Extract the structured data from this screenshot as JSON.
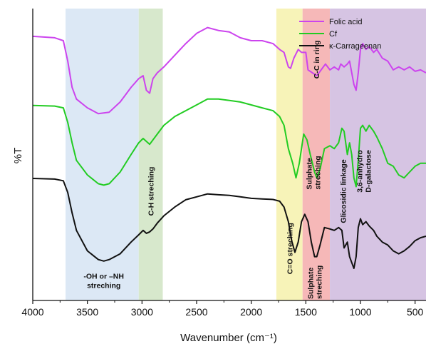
{
  "chart_data": {
    "type": "line",
    "xlabel": "Wavenumber (cm⁻¹)",
    "ylabel": "%T",
    "xlim": [
      4000,
      400
    ],
    "x_reversed": true,
    "x_ticks": [
      "4000",
      "3500",
      "3000",
      "2500",
      "2000",
      "1500",
      "1000",
      "500"
    ],
    "y_ticks_shown": false,
    "series": [
      {
        "name": "Folic acid",
        "color": "#cc44ee",
        "x": [
          4000,
          3800,
          3720,
          3680,
          3640,
          3600,
          3500,
          3400,
          3300,
          3200,
          3100,
          3030,
          2990,
          2960,
          2930,
          2900,
          2860,
          2800,
          2700,
          2600,
          2500,
          2400,
          2300,
          2200,
          2100,
          2000,
          1900,
          1800,
          1740,
          1700,
          1660,
          1640,
          1610,
          1570,
          1540,
          1500,
          1480,
          1440,
          1400,
          1360,
          1320,
          1280,
          1240,
          1200,
          1180,
          1150,
          1120,
          1100,
          1060,
          1040,
          1020,
          1000,
          980,
          950,
          920,
          880,
          850,
          800,
          750,
          700,
          650,
          600,
          550,
          500,
          450,
          400
        ],
        "y": [
          0.905,
          0.9,
          0.89,
          0.82,
          0.73,
          0.69,
          0.66,
          0.64,
          0.645,
          0.68,
          0.73,
          0.76,
          0.77,
          0.72,
          0.71,
          0.76,
          0.78,
          0.8,
          0.84,
          0.88,
          0.915,
          0.935,
          0.925,
          0.92,
          0.9,
          0.89,
          0.89,
          0.88,
          0.86,
          0.85,
          0.8,
          0.795,
          0.83,
          0.86,
          0.85,
          0.85,
          0.79,
          0.78,
          0.77,
          0.79,
          0.81,
          0.79,
          0.8,
          0.79,
          0.81,
          0.8,
          0.81,
          0.82,
          0.74,
          0.72,
          0.78,
          0.86,
          0.88,
          0.86,
          0.87,
          0.85,
          0.86,
          0.83,
          0.82,
          0.79,
          0.8,
          0.79,
          0.8,
          0.785,
          0.79,
          0.78
        ]
      },
      {
        "name": "Cf",
        "color": "#22cc22",
        "x": [
          4000,
          3800,
          3720,
          3680,
          3640,
          3600,
          3500,
          3400,
          3350,
          3300,
          3200,
          3100,
          3030,
          2990,
          2960,
          2930,
          2900,
          2860,
          2800,
          2700,
          2600,
          2500,
          2400,
          2300,
          2200,
          2100,
          2000,
          1900,
          1800,
          1740,
          1700,
          1660,
          1620,
          1590,
          1560,
          1520,
          1490,
          1460,
          1420,
          1400,
          1370,
          1330,
          1280,
          1240,
          1200,
          1170,
          1150,
          1120,
          1100,
          1080,
          1060,
          1040,
          1020,
          1000,
          980,
          950,
          920,
          880,
          850,
          800,
          750,
          700,
          650,
          600,
          550,
          500,
          450,
          400
        ],
        "y": [
          0.668,
          0.666,
          0.66,
          0.61,
          0.54,
          0.48,
          0.43,
          0.4,
          0.395,
          0.4,
          0.44,
          0.5,
          0.54,
          0.555,
          0.545,
          0.535,
          0.55,
          0.57,
          0.6,
          0.63,
          0.65,
          0.67,
          0.69,
          0.69,
          0.685,
          0.68,
          0.67,
          0.66,
          0.65,
          0.63,
          0.6,
          0.52,
          0.47,
          0.42,
          0.47,
          0.57,
          0.55,
          0.5,
          0.44,
          0.42,
          0.45,
          0.52,
          0.53,
          0.52,
          0.54,
          0.59,
          0.58,
          0.5,
          0.54,
          0.5,
          0.42,
          0.39,
          0.48,
          0.59,
          0.6,
          0.58,
          0.6,
          0.58,
          0.56,
          0.52,
          0.47,
          0.46,
          0.43,
          0.42,
          0.44,
          0.46,
          0.47,
          0.47
        ]
      },
      {
        "name": "κ-Carrageenan",
        "color": "#111111",
        "x": [
          4000,
          3800,
          3720,
          3680,
          3640,
          3600,
          3500,
          3400,
          3350,
          3300,
          3200,
          3100,
          3030,
          2990,
          2960,
          2930,
          2900,
          2860,
          2800,
          2700,
          2600,
          2500,
          2400,
          2300,
          2200,
          2100,
          2000,
          1900,
          1800,
          1740,
          1700,
          1660,
          1630,
          1600,
          1570,
          1540,
          1510,
          1480,
          1450,
          1420,
          1400,
          1370,
          1330,
          1280,
          1240,
          1200,
          1170,
          1150,
          1120,
          1100,
          1080,
          1060,
          1040,
          1020,
          1000,
          980,
          950,
          920,
          880,
          850,
          800,
          750,
          700,
          650,
          600,
          550,
          500,
          450,
          400
        ],
        "y": [
          0.418,
          0.416,
          0.41,
          0.37,
          0.3,
          0.24,
          0.17,
          0.14,
          0.135,
          0.14,
          0.16,
          0.2,
          0.225,
          0.24,
          0.23,
          0.235,
          0.245,
          0.265,
          0.29,
          0.32,
          0.345,
          0.355,
          0.365,
          0.362,
          0.36,
          0.355,
          0.35,
          0.348,
          0.346,
          0.34,
          0.32,
          0.27,
          0.205,
          0.165,
          0.2,
          0.27,
          0.295,
          0.27,
          0.2,
          0.15,
          0.15,
          0.19,
          0.25,
          0.245,
          0.24,
          0.25,
          0.24,
          0.18,
          0.2,
          0.15,
          0.13,
          0.11,
          0.15,
          0.25,
          0.28,
          0.26,
          0.27,
          0.255,
          0.24,
          0.22,
          0.2,
          0.19,
          0.17,
          0.16,
          0.17,
          0.185,
          0.205,
          0.215,
          0.22
        ]
      }
    ],
    "bands": [
      {
        "from": 3700,
        "to": 3030,
        "color": "#dce8f5",
        "label_lines": [
          "-OH or –NH",
          "streching"
        ],
        "label_at": 3350,
        "label_y": 0.075,
        "vertical": false
      },
      {
        "from": 3030,
        "to": 2810,
        "color": "#d7e8cc",
        "label_lines": [
          "C-H streching"
        ],
        "label_at": 2920,
        "label_y": 0.29,
        "vertical": true
      },
      {
        "from": 1770,
        "to": 1530,
        "color": "#f7f3b8",
        "label_lines": [
          "C=O streching"
        ],
        "label_at": 1650,
        "label_y": 0.09,
        "vertical": true
      },
      {
        "from": 1530,
        "to": 1280,
        "color": "#f6b8b8",
        "label_lines": [
          "C-C in ring"
        ],
        "label_at": 1405,
        "label_y": 0.76,
        "vertical": true
      },
      {
        "from": 1280,
        "to": 400,
        "color": "#d6c4e3",
        "label_lines": [],
        "vertical": true
      }
    ],
    "annotations": [
      {
        "lines": [
          "Sulphate",
          "streching"
        ],
        "x": 1435,
        "y": 0.38,
        "vertical": true
      },
      {
        "lines": [
          "Sulphate",
          "streching"
        ],
        "x": 1420,
        "y": 0.005,
        "vertical": true
      },
      {
        "lines": [
          "Glicosidic linkage"
        ],
        "x": 1160,
        "y": 0.265,
        "vertical": true
      },
      {
        "lines": [
          "3,6-anhydro",
          "D-galactose"
        ],
        "x": 970,
        "y": 0.37,
        "vertical": true
      }
    ],
    "legend": {
      "placement": "top-right",
      "entries": [
        "Folic acid",
        "Cf",
        "κ-Carrageenan"
      ]
    },
    "grid": false
  }
}
